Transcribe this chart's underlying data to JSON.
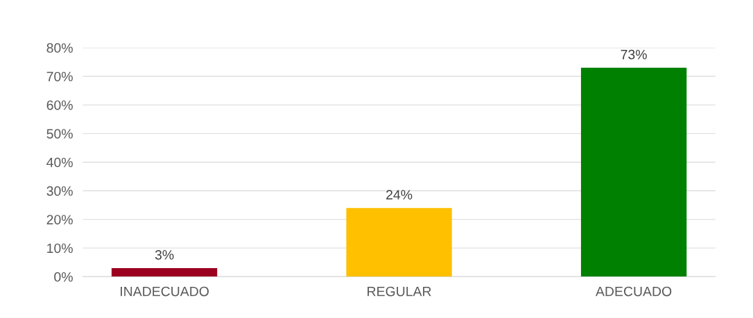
{
  "chart_data": {
    "type": "bar",
    "categories": [
      "INADECUADO",
      "REGULAR",
      "ADECUADO"
    ],
    "values": [
      3,
      24,
      73
    ],
    "colors": [
      "#9b0020",
      "#ffc000",
      "#008000"
    ],
    "value_labels": [
      "3%",
      "24%",
      "73%"
    ],
    "ylim": [
      0,
      80
    ],
    "yticks": [
      {
        "value": 0,
        "label": "0%"
      },
      {
        "value": 10,
        "label": "10%"
      },
      {
        "value": 20,
        "label": "20%"
      },
      {
        "value": 30,
        "label": "30%"
      },
      {
        "value": 40,
        "label": "40%"
      },
      {
        "value": 50,
        "label": "50%"
      },
      {
        "value": 60,
        "label": "60%"
      },
      {
        "value": 70,
        "label": "70%"
      },
      {
        "value": 80,
        "label": "80%"
      }
    ],
    "grid": "y",
    "legend": false
  }
}
